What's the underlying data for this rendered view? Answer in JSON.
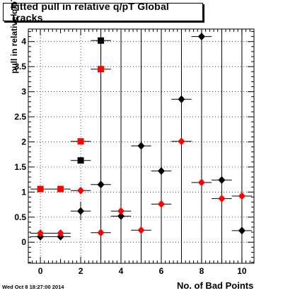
{
  "title": "Fitted pull in relative q/pT  Global Tracks",
  "timestamp": "Wed Oct  8 18:27:00 2014",
  "chart_data": {
    "type": "scatter",
    "title": "Fitted pull in relative q/pT  Global Tracks",
    "xlabel": "No. of Bad Points",
    "ylabel": "pull in relative q/pT",
    "xlim": [
      -0.6,
      10.6
    ],
    "ylim": [
      -0.42,
      4.25
    ],
    "x_ticks": [
      0,
      2,
      4,
      6,
      8,
      10
    ],
    "y_ticks": [
      0,
      0.5,
      1,
      1.5,
      2,
      2.5,
      3,
      3.5,
      4
    ],
    "y_tick_labels": [
      "0",
      "0.5",
      "1",
      "1.5",
      "2",
      "2.5",
      "3",
      "3.5",
      "4"
    ],
    "grid": true,
    "series": [
      {
        "color": "#000000",
        "points": [
          {
            "x": 0,
            "y": 0.11,
            "xerr": 0.5,
            "yerr": null,
            "marker": "diamond"
          },
          {
            "x": 1,
            "y": 0.11,
            "xerr": 0.5,
            "yerr": null,
            "marker": "diamond"
          },
          {
            "x": 2,
            "y": 0.62,
            "xerr": 0.5,
            "yerr": [
              0.18,
              0.18
            ],
            "marker": "diamond"
          },
          {
            "x": 3,
            "y": 1.15,
            "xerr": 0.5,
            "yerr": "full",
            "marker": "diamond"
          },
          {
            "x": 4,
            "y": 0.52,
            "xerr": 0.5,
            "yerr": "full",
            "marker": "diamond"
          },
          {
            "x": 5,
            "y": 1.92,
            "xerr": 0.5,
            "yerr": "full",
            "marker": "diamond"
          },
          {
            "x": 6,
            "y": 1.42,
            "xerr": 0.5,
            "yerr": "full",
            "marker": "diamond"
          },
          {
            "x": 7,
            "y": 2.85,
            "xerr": 0.5,
            "yerr": "full",
            "marker": "diamond"
          },
          {
            "x": 8,
            "y": 4.1,
            "xerr": 0.5,
            "yerr": "full",
            "marker": "diamond"
          },
          {
            "x": 9,
            "y": 1.24,
            "xerr": 0.5,
            "yerr": "full",
            "marker": "diamond"
          },
          {
            "x": 10,
            "y": 0.23,
            "xerr": 0.5,
            "yerr": "full",
            "marker": "diamond"
          },
          {
            "x": 2,
            "y": 1.63,
            "xerr": 0.5,
            "yerr": null,
            "marker": "square"
          },
          {
            "x": 3,
            "y": 4.02,
            "xerr": 0.5,
            "yerr": "full",
            "marker": "square"
          }
        ]
      },
      {
        "color": "#ff0000",
        "points": [
          {
            "x": 0,
            "y": 0.18,
            "xerr": 0.5,
            "yerr": null,
            "marker": "diamond"
          },
          {
            "x": 1,
            "y": 0.18,
            "xerr": 0.5,
            "yerr": null,
            "marker": "diamond"
          },
          {
            "x": 2,
            "y": 1.03,
            "xerr": 0.5,
            "yerr": null,
            "marker": "diamond"
          },
          {
            "x": 3,
            "y": 0.19,
            "xerr": 0.5,
            "yerr": null,
            "marker": "diamond"
          },
          {
            "x": 4,
            "y": 0.62,
            "xerr": 0.5,
            "yerr": null,
            "marker": "diamond"
          },
          {
            "x": 5,
            "y": 0.24,
            "xerr": 0.5,
            "yerr": null,
            "marker": "diamond"
          },
          {
            "x": 6,
            "y": 0.76,
            "xerr": 0.5,
            "yerr": null,
            "marker": "diamond"
          },
          {
            "x": 7,
            "y": 2.01,
            "xerr": 0.5,
            "yerr": null,
            "marker": "diamond"
          },
          {
            "x": 8,
            "y": 1.19,
            "xerr": 0.5,
            "yerr": null,
            "marker": "diamond"
          },
          {
            "x": 9,
            "y": 0.87,
            "xerr": 0.5,
            "yerr": null,
            "marker": "diamond"
          },
          {
            "x": 10,
            "y": 0.92,
            "xerr": 0.5,
            "yerr": null,
            "marker": "diamond"
          },
          {
            "x": 0,
            "y": 1.06,
            "xerr": 0.5,
            "yerr": null,
            "marker": "square"
          },
          {
            "x": 1,
            "y": 1.06,
            "xerr": 0.5,
            "yerr": null,
            "marker": "square"
          },
          {
            "x": 2,
            "y": 2.01,
            "xerr": 0.5,
            "yerr": null,
            "marker": "square"
          },
          {
            "x": 3,
            "y": 3.45,
            "xerr": 0.5,
            "yerr": null,
            "marker": "square"
          }
        ]
      }
    ]
  }
}
